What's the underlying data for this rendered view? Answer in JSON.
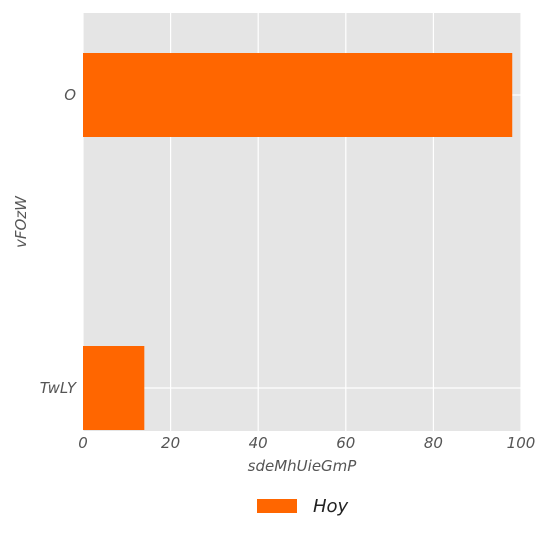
{
  "chart_data": {
    "type": "bar",
    "orientation": "horizontal",
    "categories": [
      "O",
      "TwLY"
    ],
    "series": [
      {
        "name": "Hoy",
        "values": [
          98,
          14
        ],
        "color": "#ff6600"
      }
    ],
    "xlabel": "sdeMhUieGmP",
    "ylabel": "vFOzW",
    "xlim": [
      0,
      100
    ],
    "xticks": [
      0,
      20,
      40,
      60,
      80,
      100
    ],
    "grid": true,
    "legend": "bottom-center",
    "background": "#e5e5e5",
    "grid_color": "#ffffff"
  }
}
